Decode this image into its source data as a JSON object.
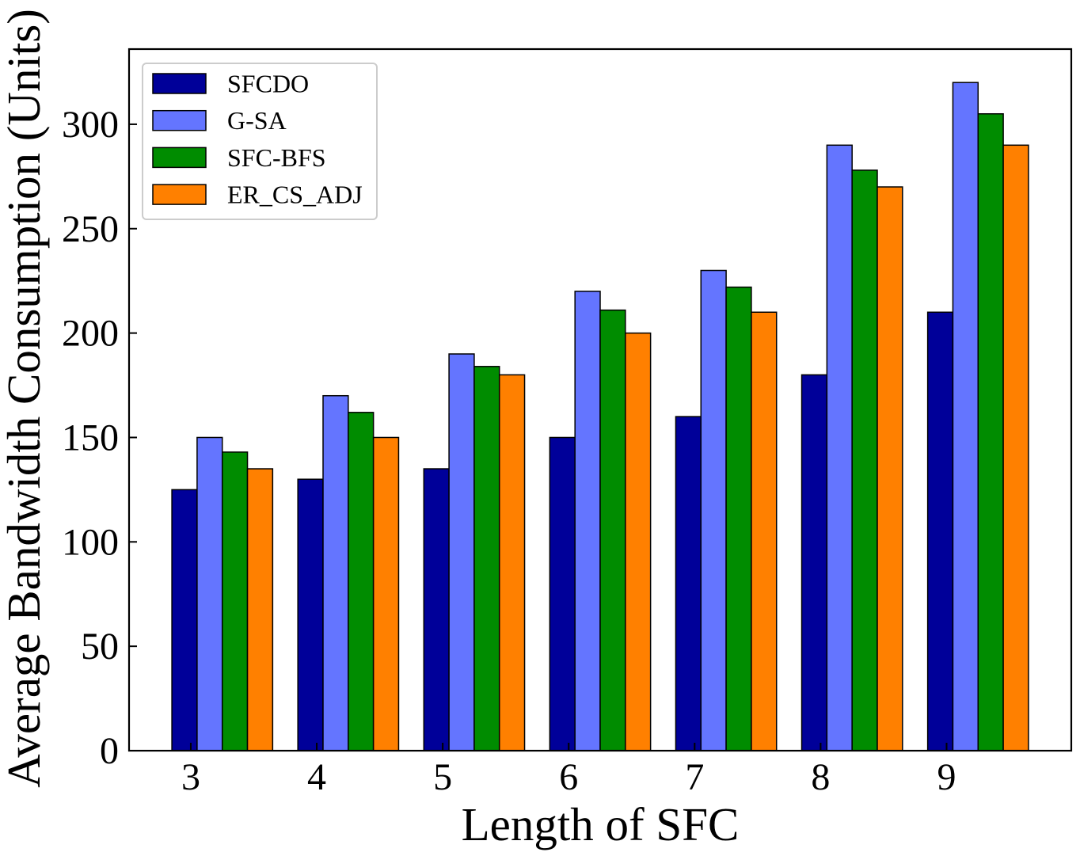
{
  "chart_data": {
    "type": "bar",
    "xlabel": "Length of SFC",
    "ylabel": "Average Bandwidth Consumption (Units)",
    "categories": [
      "3",
      "4",
      "5",
      "6",
      "7",
      "8",
      "9"
    ],
    "series": [
      {
        "name": "SFCDO",
        "color": "#000099",
        "values": [
          125,
          130,
          135,
          150,
          160,
          180,
          210
        ]
      },
      {
        "name": "G-SA",
        "color": "#6475ff",
        "values": [
          150,
          170,
          190,
          220,
          230,
          290,
          320
        ]
      },
      {
        "name": "SFC-BFS",
        "color": "#008c00",
        "values": [
          143,
          162,
          184,
          211,
          222,
          278,
          305
        ]
      },
      {
        "name": "ER_CS_ADJ",
        "color": "#ff8000",
        "values": [
          135,
          150,
          180,
          200,
          210,
          270,
          290
        ]
      }
    ],
    "ylim": [
      0,
      336
    ],
    "yticks": [
      0,
      50,
      100,
      150,
      200,
      250,
      300
    ],
    "grid": false,
    "legend_position": "upper-left"
  }
}
